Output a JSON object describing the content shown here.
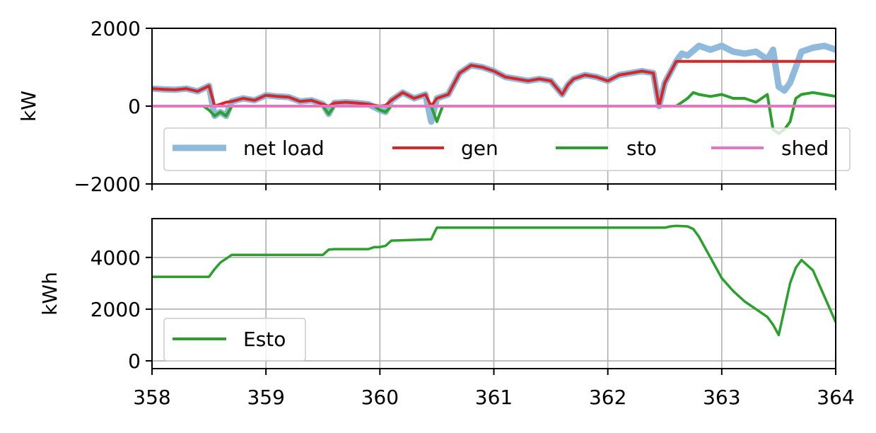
{
  "chart_data": [
    {
      "type": "line",
      "ylabel": "kW",
      "xlabel": "",
      "xlim": [
        358,
        364
      ],
      "ylim": [
        -2000,
        2000
      ],
      "x_ticks": [
        "358",
        "359",
        "360",
        "361",
        "362",
        "363",
        "364"
      ],
      "y_ticks": [
        "−2000",
        "0",
        "2000"
      ],
      "grid": true,
      "legend_position": "lower-center",
      "legend_columns": 4,
      "colors": {
        "net_load": "#8fbadb",
        "gen": "#d62728",
        "sto": "#2ca02c",
        "shed": "#e377c2"
      },
      "series": [
        {
          "name": "net load",
          "x": [
            358.0,
            358.1,
            358.2,
            358.3,
            358.4,
            358.5,
            358.55,
            358.6,
            358.65,
            358.7,
            358.8,
            358.9,
            359.0,
            359.1,
            359.2,
            359.3,
            359.4,
            359.5,
            359.55,
            359.6,
            359.7,
            359.8,
            359.9,
            360.0,
            360.05,
            360.1,
            360.2,
            360.3,
            360.4,
            360.45,
            360.5,
            360.6,
            360.7,
            360.8,
            360.9,
            361.0,
            361.1,
            361.2,
            361.3,
            361.4,
            361.5,
            361.6,
            361.65,
            361.7,
            361.8,
            361.9,
            362.0,
            362.1,
            362.2,
            362.3,
            362.4,
            362.45,
            362.5,
            362.6,
            362.65,
            362.7,
            362.8,
            362.9,
            363.0,
            363.1,
            363.2,
            363.3,
            363.4,
            363.45,
            363.5,
            363.55,
            363.6,
            363.65,
            363.7,
            363.8,
            363.9,
            364.0
          ],
          "values": [
            450,
            430,
            420,
            450,
            380,
            520,
            -250,
            -150,
            -250,
            120,
            200,
            150,
            280,
            250,
            230,
            120,
            150,
            50,
            -200,
            80,
            100,
            80,
            50,
            -100,
            -150,
            150,
            350,
            200,
            300,
            -400,
            200,
            300,
            850,
            1050,
            1000,
            900,
            750,
            700,
            650,
            700,
            650,
            300,
            550,
            700,
            800,
            750,
            650,
            800,
            850,
            900,
            850,
            0,
            600,
            1150,
            1350,
            1300,
            1550,
            1450,
            1550,
            1400,
            1350,
            1400,
            1200,
            1450,
            500,
            400,
            600,
            1000,
            1400,
            1500,
            1550,
            1450
          ]
        },
        {
          "name": "gen",
          "x": [
            358.0,
            358.1,
            358.2,
            358.3,
            358.4,
            358.5,
            358.55,
            358.6,
            358.65,
            358.7,
            358.8,
            358.9,
            359.0,
            359.1,
            359.2,
            359.3,
            359.4,
            359.5,
            359.55,
            359.6,
            359.7,
            359.8,
            359.9,
            360.0,
            360.05,
            360.1,
            360.2,
            360.3,
            360.4,
            360.45,
            360.5,
            360.6,
            360.7,
            360.8,
            360.9,
            361.0,
            361.1,
            361.2,
            361.3,
            361.4,
            361.5,
            361.6,
            361.65,
            361.7,
            361.8,
            361.9,
            362.0,
            362.1,
            362.2,
            362.3,
            362.4,
            362.45,
            362.5,
            362.6,
            362.65,
            362.7,
            363.0,
            364.0
          ],
          "values": [
            450,
            430,
            420,
            450,
            380,
            520,
            0,
            50,
            100,
            120,
            200,
            150,
            280,
            250,
            230,
            120,
            150,
            50,
            0,
            80,
            100,
            80,
            50,
            0,
            20,
            150,
            350,
            200,
            300,
            0,
            200,
            300,
            850,
            1050,
            1000,
            900,
            750,
            700,
            650,
            700,
            650,
            300,
            550,
            700,
            800,
            750,
            650,
            800,
            850,
            900,
            850,
            0,
            600,
            1150,
            1150,
            1150,
            1150,
            1150
          ]
        },
        {
          "name": "sto",
          "x": [
            358.0,
            358.45,
            358.5,
            358.55,
            358.6,
            358.65,
            358.7,
            358.8,
            359.5,
            359.55,
            359.6,
            359.95,
            360.0,
            360.05,
            360.1,
            360.45,
            360.5,
            360.55,
            362.6,
            362.7,
            362.75,
            362.8,
            362.9,
            363.0,
            363.1,
            363.2,
            363.3,
            363.4,
            363.45,
            363.5,
            363.55,
            363.6,
            363.65,
            363.7,
            363.8,
            363.9,
            364.0
          ],
          "values": [
            0,
            0,
            -100,
            -250,
            -150,
            -250,
            0,
            0,
            0,
            -200,
            0,
            0,
            -100,
            -150,
            0,
            0,
            -400,
            0,
            0,
            200,
            350,
            300,
            250,
            300,
            200,
            200,
            100,
            300,
            -600,
            -700,
            -600,
            -400,
            200,
            300,
            350,
            300,
            250
          ]
        },
        {
          "name": "shed",
          "x": [
            358,
            364
          ],
          "values": [
            0,
            0
          ]
        }
      ]
    },
    {
      "type": "line",
      "ylabel": "kWh",
      "xlabel": "",
      "xlim": [
        358,
        364
      ],
      "ylim": [
        -300,
        5500
      ],
      "x_ticks": [
        "358",
        "359",
        "360",
        "361",
        "362",
        "363",
        "364"
      ],
      "y_ticks": [
        "0",
        "2000",
        "4000"
      ],
      "grid": true,
      "legend_position": "lower-left",
      "colors": {
        "Esto": "#2ca02c"
      },
      "series": [
        {
          "name": "Esto",
          "x": [
            358.0,
            358.5,
            358.55,
            358.6,
            358.65,
            358.7,
            359.0,
            359.5,
            359.55,
            359.6,
            359.9,
            359.95,
            360.0,
            360.05,
            360.1,
            360.45,
            360.5,
            362.5,
            362.55,
            362.6,
            362.7,
            362.75,
            362.8,
            362.9,
            363.0,
            363.1,
            363.2,
            363.3,
            363.4,
            363.45,
            363.5,
            363.55,
            363.6,
            363.65,
            363.7,
            363.8,
            363.9,
            364.0
          ],
          "values": [
            3250,
            3250,
            3550,
            3800,
            3950,
            4100,
            4100,
            4100,
            4300,
            4320,
            4320,
            4400,
            4400,
            4450,
            4650,
            4700,
            5150,
            5150,
            5200,
            5220,
            5200,
            5100,
            4800,
            4000,
            3200,
            2700,
            2300,
            2000,
            1700,
            1400,
            1000,
            2000,
            3000,
            3600,
            3900,
            3500,
            2500,
            1500
          ]
        }
      ]
    }
  ]
}
